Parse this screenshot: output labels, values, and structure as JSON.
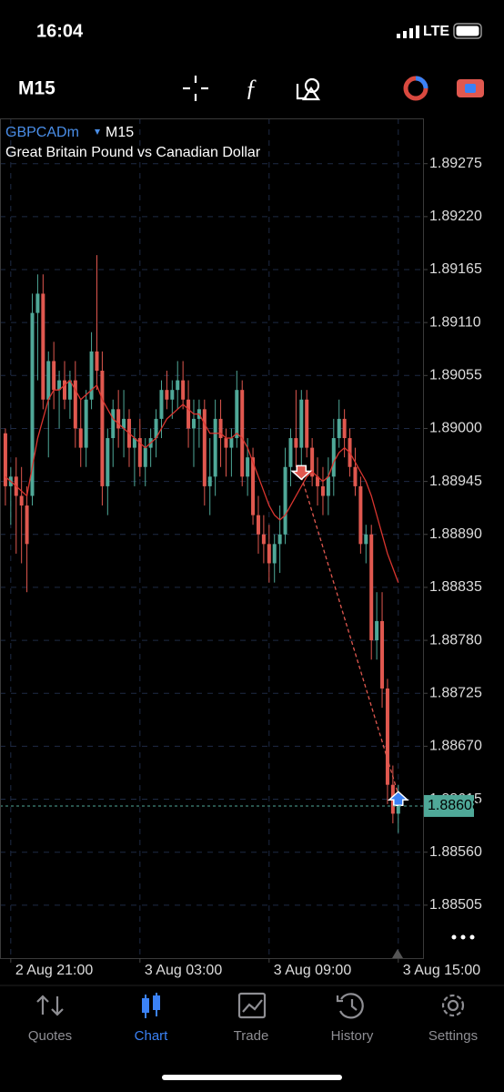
{
  "status_bar": {
    "time": "16:04",
    "network": "LTE"
  },
  "toolbar": {
    "timeframe": "M15"
  },
  "tabs": [
    "Quotes",
    "Chart",
    "Trade",
    "History",
    "Settings"
  ],
  "active_tab": 1,
  "chart_data": {
    "type": "candlestick",
    "symbol": "GBPCADm",
    "timeframe": "M15",
    "description": "Great Britain Pound vs Canadian Dollar",
    "up_color": "#4fa898",
    "down_color": "#e0584f",
    "ma_color": "#d9352f",
    "grid": true,
    "ylim": [
      1.8845,
      1.89322
    ],
    "yticks": [
      1.89275,
      {
        "value": 1.8922,
        "label": "1.89220"
      },
      1.89165,
      {
        "value": 1.8911,
        "label": "1.89110"
      },
      1.89055,
      {
        "value": 1.89,
        "label": "1.89000"
      },
      1.88945,
      {
        "value": 1.8889,
        "label": "1.88890"
      },
      1.88835,
      {
        "value": 1.8878,
        "label": "1.88780"
      },
      1.88725,
      {
        "value": 1.8867,
        "label": "1.88670"
      },
      1.88615,
      {
        "value": 1.8856,
        "label": "1.88560"
      },
      1.88505
    ],
    "xlim": [
      -1,
      77.6
    ],
    "xticks": [
      {
        "value": 1,
        "label": "2 Aug 21:00"
      },
      {
        "value": 25,
        "label": "3 Aug 03:00"
      },
      {
        "value": 49,
        "label": "3 Aug 09:00"
      },
      {
        "value": 73,
        "label": "3 Aug 15:00"
      }
    ],
    "last_price": 1.88608,
    "ohlc": [
      [
        1.88995,
        1.89,
        1.8892,
        1.8894
      ],
      [
        1.8894,
        1.8896,
        1.889,
        1.8895
      ],
      [
        1.8895,
        1.8897,
        1.8887,
        1.8893
      ],
      [
        1.8893,
        1.8896,
        1.8886,
        1.8892
      ],
      [
        1.8892,
        1.8894,
        1.8883,
        1.8888
      ],
      [
        1.8893,
        1.8914,
        1.8892,
        1.8912
      ],
      [
        1.8912,
        1.8916,
        1.8905,
        1.8914
      ],
      [
        1.8914,
        1.8916,
        1.8902,
        1.8903
      ],
      [
        1.8903,
        1.8908,
        1.8897,
        1.8907
      ],
      [
        1.8907,
        1.8909,
        1.8902,
        1.8904
      ],
      [
        1.8904,
        1.8906,
        1.89,
        1.8905
      ],
      [
        1.8905,
        1.8907,
        1.8902,
        1.8903
      ],
      [
        1.8903,
        1.8906,
        1.8901,
        1.8905
      ],
      [
        1.8905,
        1.8907,
        1.8898,
        1.89
      ],
      [
        1.89,
        1.8903,
        1.8896,
        1.8898
      ],
      [
        1.8898,
        1.8904,
        1.8896,
        1.8903
      ],
      [
        1.8903,
        1.891,
        1.8902,
        1.8908
      ],
      [
        1.8908,
        1.8918,
        1.8904,
        1.8906
      ],
      [
        1.8906,
        1.8908,
        1.8892,
        1.8894
      ],
      [
        1.8894,
        1.89,
        1.8891,
        1.8899
      ],
      [
        1.8899,
        1.8903,
        1.8896,
        1.8902
      ],
      [
        1.8902,
        1.8904,
        1.8898,
        1.89
      ],
      [
        1.89,
        1.8904,
        1.8897,
        1.8901
      ],
      [
        1.8901,
        1.8902,
        1.8896,
        1.8898
      ],
      [
        1.8898,
        1.89,
        1.8894,
        1.8899
      ],
      [
        1.8899,
        1.8901,
        1.8895,
        1.8896
      ],
      [
        1.8896,
        1.8899,
        1.8894,
        1.8898
      ],
      [
        1.8898,
        1.89,
        1.8896,
        1.8899
      ],
      [
        1.8899,
        1.8902,
        1.8897,
        1.8901
      ],
      [
        1.8901,
        1.8905,
        1.8899,
        1.8904
      ],
      [
        1.8904,
        1.8906,
        1.8902,
        1.8903
      ],
      [
        1.8903,
        1.8905,
        1.8901,
        1.8904
      ],
      [
        1.8904,
        1.8907,
        1.8902,
        1.8905
      ],
      [
        1.8905,
        1.8907,
        1.8902,
        1.8903
      ],
      [
        1.8903,
        1.8905,
        1.8898,
        1.89
      ],
      [
        1.89,
        1.8903,
        1.8896,
        1.8901
      ],
      [
        1.8901,
        1.8903,
        1.8898,
        1.8902
      ],
      [
        1.8902,
        1.8903,
        1.8892,
        1.8894
      ],
      [
        1.8894,
        1.8899,
        1.8891,
        1.8895
      ],
      [
        1.8895,
        1.8903,
        1.8893,
        1.8901
      ],
      [
        1.8901,
        1.8903,
        1.8896,
        1.8899
      ],
      [
        1.8899,
        1.89,
        1.8895,
        1.8898
      ],
      [
        1.8898,
        1.89,
        1.8895,
        1.8899
      ],
      [
        1.8899,
        1.8906,
        1.8898,
        1.8904
      ],
      [
        1.8904,
        1.8905,
        1.8894,
        1.8895
      ],
      [
        1.8895,
        1.8899,
        1.8893,
        1.8897
      ],
      [
        1.8897,
        1.8898,
        1.889,
        1.8891
      ],
      [
        1.8891,
        1.8893,
        1.8887,
        1.8889
      ],
      [
        1.8889,
        1.8891,
        1.8886,
        1.8888
      ],
      [
        1.8888,
        1.889,
        1.8884,
        1.8886
      ],
      [
        1.8886,
        1.8889,
        1.8884,
        1.8888
      ],
      [
        1.8888,
        1.8892,
        1.8885,
        1.8889
      ],
      [
        1.8889,
        1.8898,
        1.8888,
        1.8896
      ],
      [
        1.8896,
        1.89,
        1.8894,
        1.8899
      ],
      [
        1.8899,
        1.8904,
        1.8896,
        1.8898
      ],
      [
        1.8898,
        1.8904,
        1.8895,
        1.8903
      ],
      [
        1.8903,
        1.8904,
        1.8897,
        1.8898
      ],
      [
        1.8898,
        1.8899,
        1.8894,
        1.8895
      ],
      [
        1.8895,
        1.8897,
        1.8892,
        1.8894
      ],
      [
        1.8894,
        1.8896,
        1.8891,
        1.8893
      ],
      [
        1.8893,
        1.8897,
        1.8891,
        1.8895
      ],
      [
        1.8895,
        1.8901,
        1.8893,
        1.8899
      ],
      [
        1.8899,
        1.8903,
        1.8898,
        1.8901
      ],
      [
        1.8901,
        1.8902,
        1.8897,
        1.8899
      ],
      [
        1.8899,
        1.89,
        1.8895,
        1.8896
      ],
      [
        1.8896,
        1.8898,
        1.8893,
        1.8894
      ],
      [
        1.8894,
        1.8895,
        1.8887,
        1.8888
      ],
      [
        1.8888,
        1.889,
        1.8886,
        1.8889
      ],
      [
        1.8889,
        1.889,
        1.8876,
        1.8878
      ],
      [
        1.8878,
        1.8883,
        1.8876,
        1.888
      ],
      [
        1.888,
        1.8883,
        1.8871,
        1.8873
      ],
      [
        1.8873,
        1.8874,
        1.8861,
        1.8863
      ],
      [
        1.8863,
        1.8865,
        1.8859,
        1.886
      ],
      [
        1.886,
        1.8863,
        1.8858,
        1.88608
      ]
    ],
    "ma": [
      1.8895,
      1.88945,
      1.8894,
      1.88935,
      1.8893,
      1.8896,
      1.8899,
      1.8901,
      1.8903,
      1.8904,
      1.8904,
      1.89045,
      1.8905,
      1.8904,
      1.8903,
      1.89035,
      1.8904,
      1.89045,
      1.8903,
      1.8902,
      1.8901,
      1.89005,
      1.89,
      1.88995,
      1.8899,
      1.88985,
      1.8898,
      1.88985,
      1.8899,
      1.89,
      1.8901,
      1.89015,
      1.8902,
      1.89025,
      1.8902,
      1.89015,
      1.89015,
      1.89005,
      1.88995,
      1.88995,
      1.88995,
      1.8899,
      1.8899,
      1.88995,
      1.8899,
      1.8898,
      1.88965,
      1.8895,
      1.88935,
      1.8892,
      1.8891,
      1.88905,
      1.8891,
      1.8892,
      1.8893,
      1.8894,
      1.8895,
      1.88955,
      1.8895,
      1.88945,
      1.8895,
      1.88965,
      1.88975,
      1.8898,
      1.88975,
      1.88965,
      1.88955,
      1.88945,
      1.8893,
      1.8891,
      1.8889,
      1.8887,
      1.88855,
      1.8884
    ],
    "sell": {
      "index": 55,
      "price": 1.8895
    },
    "buy": {
      "index": 73,
      "price": 1.8862
    }
  }
}
